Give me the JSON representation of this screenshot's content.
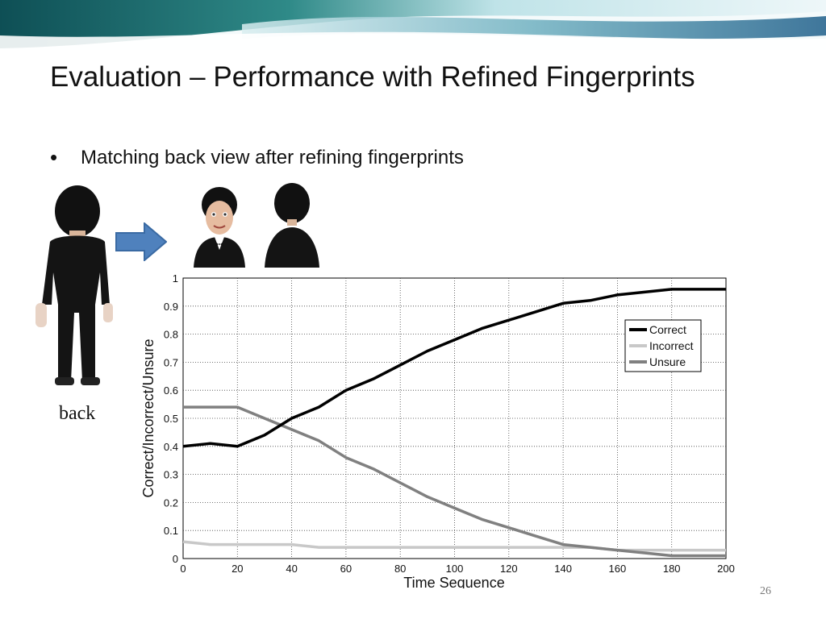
{
  "slide": {
    "title": "Evaluation – Performance with Refined Fingerprints",
    "bullet": "Matching back view after refining fingerprints",
    "back_label": "back",
    "page_number": "26"
  },
  "icons": {
    "bullet": "•",
    "arrow": "right-arrow-icon",
    "figures": [
      "avatar-back-view",
      "avatar-front-view",
      "avatar-back-view-small"
    ]
  },
  "colors": {
    "arrow_fill": "#4f81bd",
    "correct": "#000000",
    "incorrect": "#c8c8c8",
    "unsure": "#808080"
  },
  "chart_data": {
    "type": "line",
    "xlabel": "Time Sequence",
    "ylabel": "Correct/Incorrect/Unsure",
    "xlim": [
      0,
      200
    ],
    "ylim": [
      0,
      1
    ],
    "x_ticks": [
      "0",
      "20",
      "40",
      "60",
      "80",
      "100",
      "120",
      "140",
      "160",
      "180",
      "200"
    ],
    "y_ticks": [
      "0",
      "0.1",
      "0.2",
      "0.3",
      "0.4",
      "0.5",
      "0.6",
      "0.7",
      "0.8",
      "0.9",
      "1"
    ],
    "grid": true,
    "legend_position": "top-right",
    "x": [
      0,
      10,
      20,
      30,
      40,
      50,
      60,
      70,
      80,
      90,
      100,
      110,
      120,
      130,
      140,
      150,
      160,
      170,
      180,
      190,
      200
    ],
    "series": [
      {
        "name": "Correct",
        "values": [
          0.4,
          0.41,
          0.4,
          0.44,
          0.5,
          0.54,
          0.6,
          0.64,
          0.69,
          0.74,
          0.78,
          0.82,
          0.85,
          0.88,
          0.91,
          0.92,
          0.94,
          0.95,
          0.96,
          0.96,
          0.96
        ]
      },
      {
        "name": "Incorrect",
        "values": [
          0.06,
          0.05,
          0.05,
          0.05,
          0.05,
          0.04,
          0.04,
          0.04,
          0.04,
          0.04,
          0.04,
          0.04,
          0.04,
          0.04,
          0.04,
          0.04,
          0.03,
          0.03,
          0.03,
          0.03,
          0.03
        ]
      },
      {
        "name": "Unsure",
        "values": [
          0.54,
          0.54,
          0.54,
          0.5,
          0.46,
          0.42,
          0.36,
          0.32,
          0.27,
          0.22,
          0.18,
          0.14,
          0.11,
          0.08,
          0.05,
          0.04,
          0.03,
          0.02,
          0.01,
          0.01,
          0.01
        ]
      }
    ]
  }
}
